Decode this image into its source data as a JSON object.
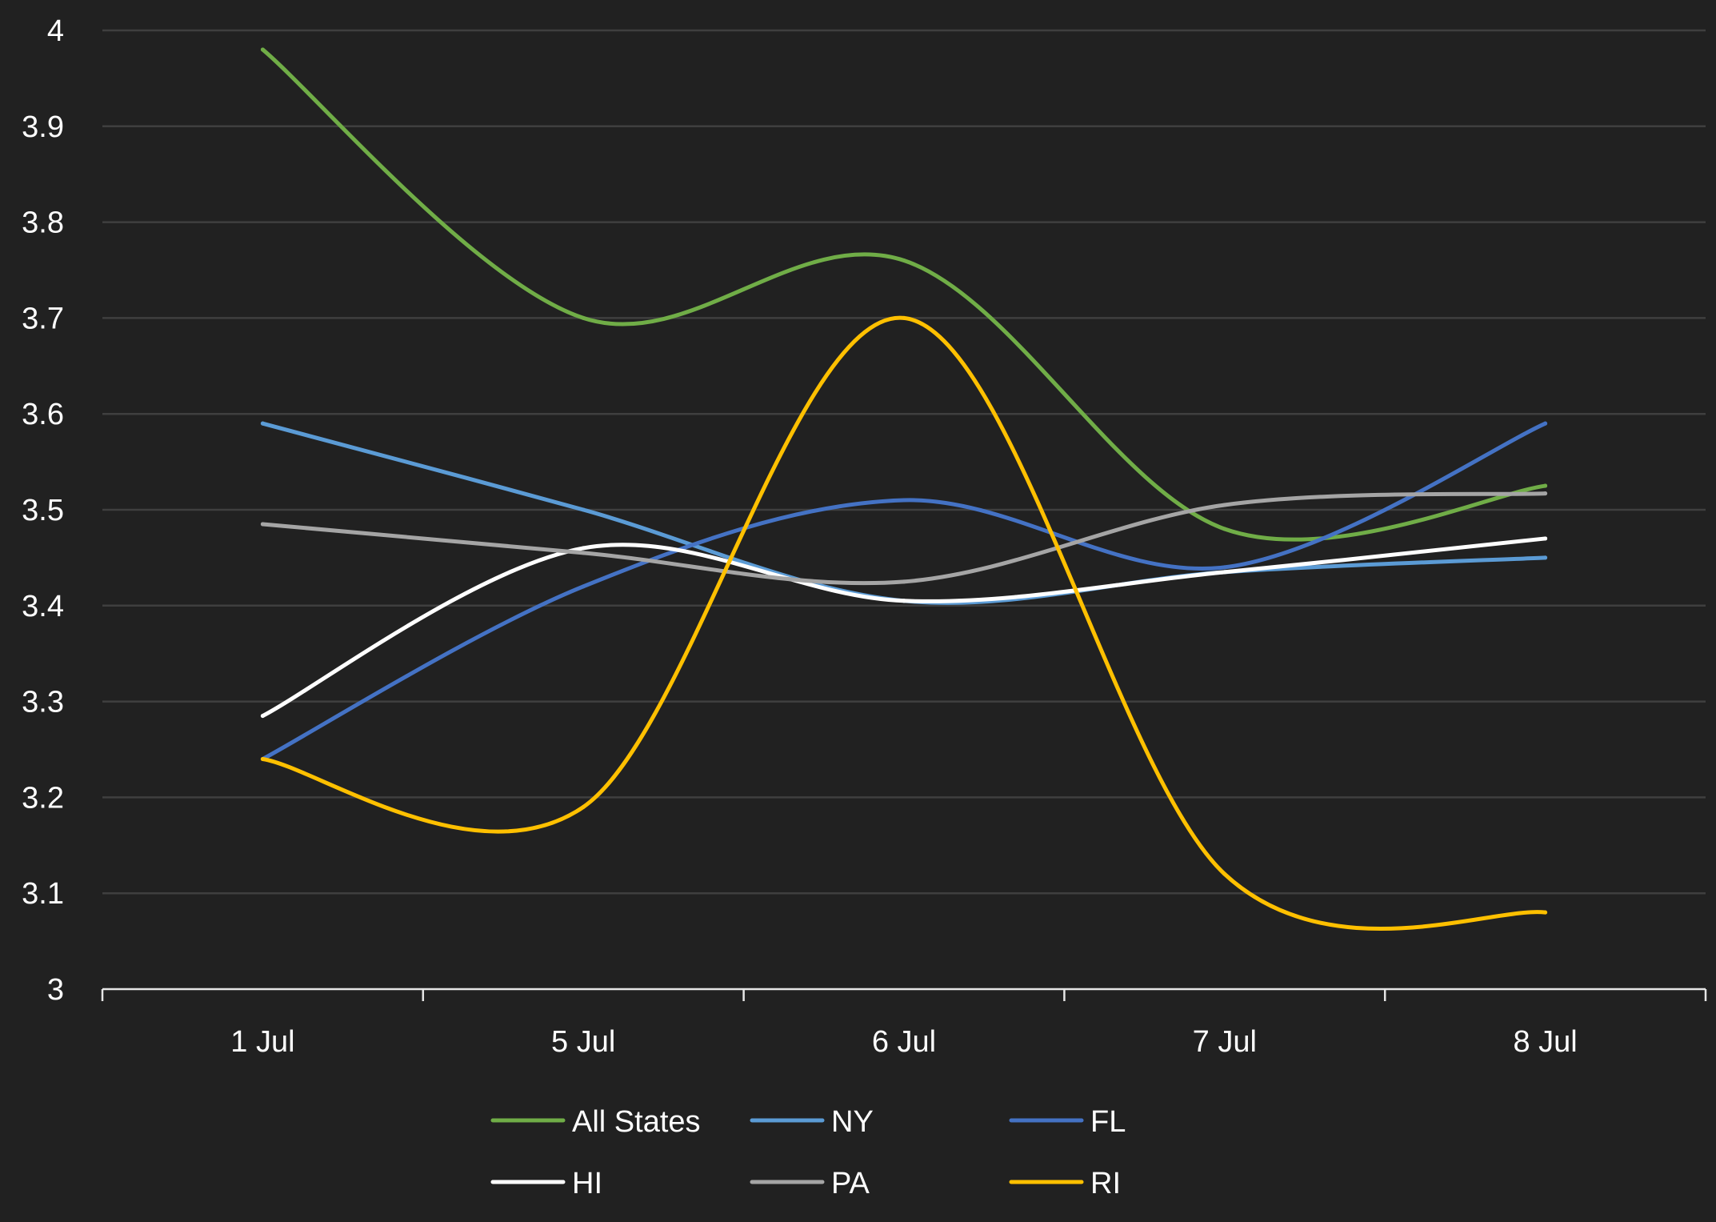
{
  "chart_data": {
    "type": "line",
    "title": "",
    "xlabel": "",
    "ylabel": "",
    "categories": [
      "1 Jul",
      "5 Jul",
      "6 Jul",
      "7 Jul",
      "8 Jul"
    ],
    "ylim": [
      3,
      4
    ],
    "yticks": [
      "3",
      "3.1",
      "3.2",
      "3.3",
      "3.4",
      "3.5",
      "3.6",
      "3.7",
      "3.8",
      "3.9",
      "4"
    ],
    "grid": true,
    "smooth": true,
    "legend_position": "bottom",
    "series": [
      {
        "name": "All States",
        "color": "#70ad47",
        "values": [
          3.98,
          3.7,
          3.76,
          3.48,
          3.525
        ]
      },
      {
        "name": "NY",
        "color": "#5b9bd5",
        "values": [
          3.59,
          3.5,
          3.405,
          3.435,
          3.45
        ]
      },
      {
        "name": "FL",
        "color": "#4472c4",
        "values": [
          3.24,
          3.42,
          3.51,
          3.44,
          3.59
        ]
      },
      {
        "name": "HI",
        "color": "#ffffff",
        "values": [
          3.285,
          3.46,
          3.405,
          3.435,
          3.47
        ]
      },
      {
        "name": "PA",
        "color": "#a5a5a5",
        "values": [
          3.485,
          3.455,
          3.425,
          3.505,
          3.517
        ]
      },
      {
        "name": "RI",
        "color": "#ffc000",
        "values": [
          3.24,
          3.19,
          3.7,
          3.12,
          3.08
        ]
      }
    ]
  }
}
